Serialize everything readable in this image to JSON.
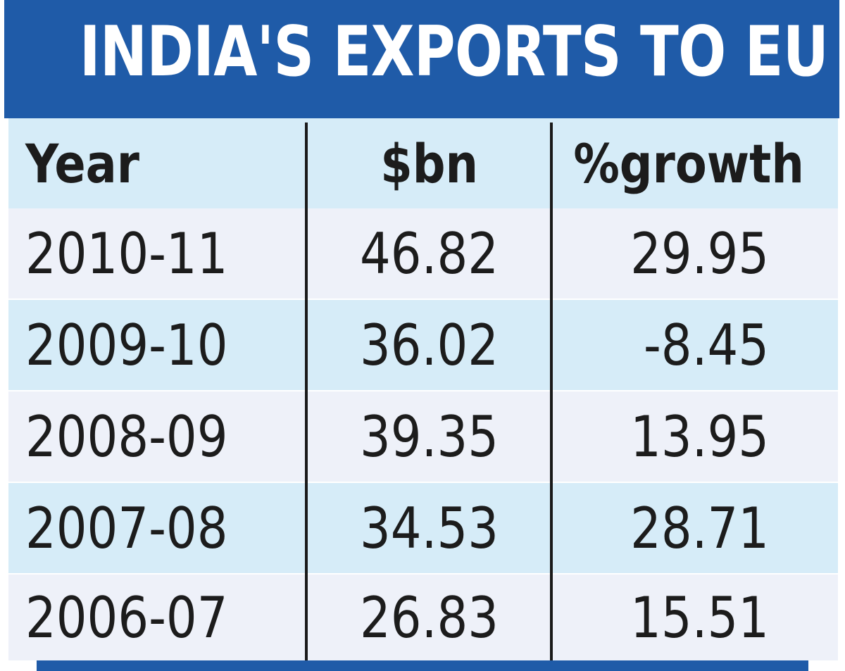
{
  "chart_data": {
    "type": "table",
    "title": "INDIA'S EXPORTS TO EU",
    "columns": [
      "Year",
      "$bn",
      "%growth"
    ],
    "rows": [
      [
        "2010-11",
        "46.82",
        "29.95"
      ],
      [
        "2009-10",
        "36.02",
        "-8.45"
      ],
      [
        "2008-09",
        "39.35",
        "13.95"
      ],
      [
        "2007-08",
        "34.53",
        "28.71"
      ],
      [
        "2006-07",
        "26.83",
        "15.51"
      ]
    ]
  },
  "colors": {
    "title_bar": "#1f5ba8",
    "band_row": "#d6ecf8",
    "light_row": "#eef1f9",
    "text": "#1c1c1c",
    "divider": "#1a1a1a"
  }
}
